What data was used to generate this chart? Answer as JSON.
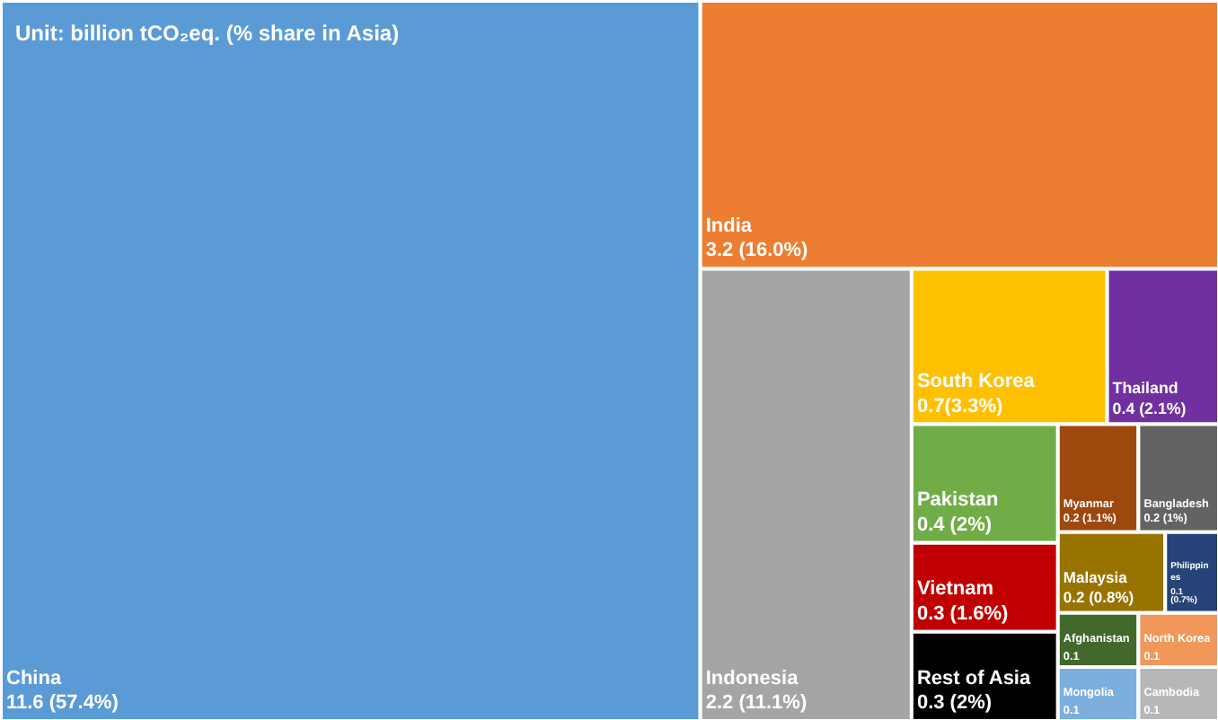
{
  "chart_data": {
    "type": "other",
    "title": "Unit: billion tCO₂eq. (% share in Asia)",
    "categories": [
      "China",
      "India",
      "Indonesia",
      "South Korea",
      "Thailand",
      "Pakistan",
      "Vietnam",
      "Rest of Asia",
      "Myanmar",
      "Bangladesh",
      "Malaysia",
      "Philippines",
      "Afghanistan",
      "Mongolia",
      "North Korea",
      "Cambodia"
    ],
    "values": [
      11.6,
      3.2,
      2.2,
      0.7,
      0.4,
      0.4,
      0.3,
      0.3,
      0.2,
      0.2,
      0.2,
      0.1,
      0.1,
      0.1,
      0.1,
      0.1
    ],
    "value_labels": [
      "11.6 (57.4%)",
      "3.2 (16.0%)",
      "2.2 (11.1%)",
      "0.7(3.3%)",
      "0.4 (2.1%)",
      "0.4 (2%)",
      "0.3 (1.6%)",
      "0.3 (2%)",
      "0.2 (1.1%)",
      "0.2 (1%)",
      "0.2 (0.8%)",
      "0.1 (0.7%)",
      "0.1",
      "0.1",
      "0.1",
      "0.1"
    ],
    "colors": [
      "#5b9bd5",
      "#ed7d31",
      "#a5a5a5",
      "#ffc000",
      "#7030a0",
      "#70ad47",
      "#c00000",
      "#000000",
      "#9e480e",
      "#636363",
      "#997300",
      "#264478",
      "#43682b",
      "#7cafdd",
      "#f1975a",
      "#b7b7b7"
    ]
  }
}
